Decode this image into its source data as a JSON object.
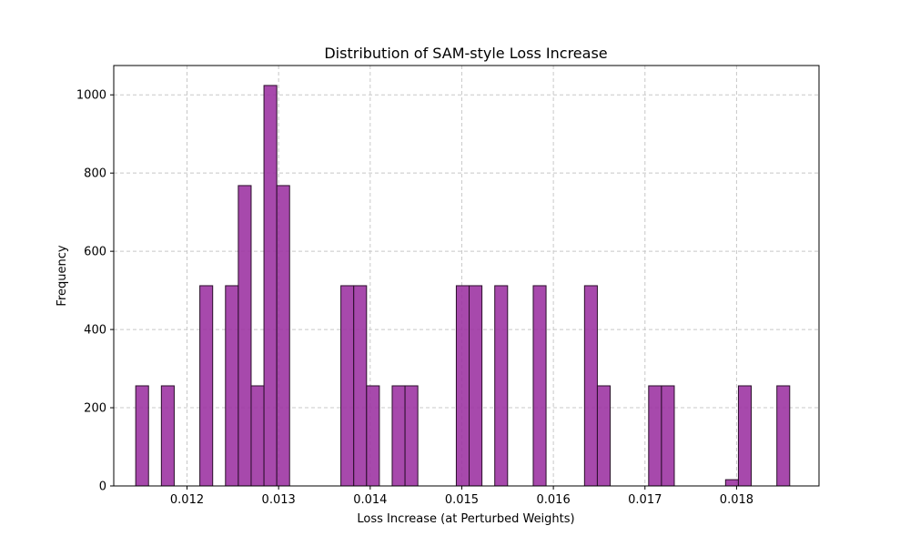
{
  "chart_data": {
    "type": "bar",
    "title": "Distribution of SAM-style Loss Increase",
    "xlabel": "Loss Increase (at Perturbed Weights)",
    "ylabel": "Frequency",
    "xlim": [
      0.0112,
      0.0189
    ],
    "ylim": [
      0,
      1075
    ],
    "xticks": [
      0.012,
      0.013,
      0.014,
      0.015,
      0.016,
      0.017,
      0.018
    ],
    "xtick_labels": [
      "0.012",
      "0.013",
      "0.014",
      "0.015",
      "0.016",
      "0.017",
      "0.018"
    ],
    "yticks": [
      0,
      200,
      400,
      600,
      800,
      1000
    ],
    "ytick_labels": [
      "0",
      "200",
      "400",
      "600",
      "800",
      "1000"
    ],
    "grid": true,
    "bin_width": 0.00014,
    "bar_color": "#9b30a0",
    "edge_color": "#2a0f2a",
    "bins": [
      {
        "start": 0.01144,
        "count": 256
      },
      {
        "start": 0.01172,
        "count": 256
      },
      {
        "start": 0.01214,
        "count": 512
      },
      {
        "start": 0.01242,
        "count": 512
      },
      {
        "start": 0.01256,
        "count": 768
      },
      {
        "start": 0.0127,
        "count": 256
      },
      {
        "start": 0.01284,
        "count": 1024
      },
      {
        "start": 0.01298,
        "count": 768
      },
      {
        "start": 0.01368,
        "count": 512
      },
      {
        "start": 0.01382,
        "count": 512
      },
      {
        "start": 0.01396,
        "count": 256
      },
      {
        "start": 0.01424,
        "count": 256
      },
      {
        "start": 0.01438,
        "count": 256
      },
      {
        "start": 0.01494,
        "count": 512
      },
      {
        "start": 0.01508,
        "count": 512
      },
      {
        "start": 0.01536,
        "count": 512
      },
      {
        "start": 0.01578,
        "count": 512
      },
      {
        "start": 0.01634,
        "count": 512
      },
      {
        "start": 0.01648,
        "count": 256
      },
      {
        "start": 0.01704,
        "count": 256
      },
      {
        "start": 0.01718,
        "count": 256
      },
      {
        "start": 0.01788,
        "count": 16
      },
      {
        "start": 0.01802,
        "count": 256
      },
      {
        "start": 0.01844,
        "count": 256
      }
    ]
  }
}
